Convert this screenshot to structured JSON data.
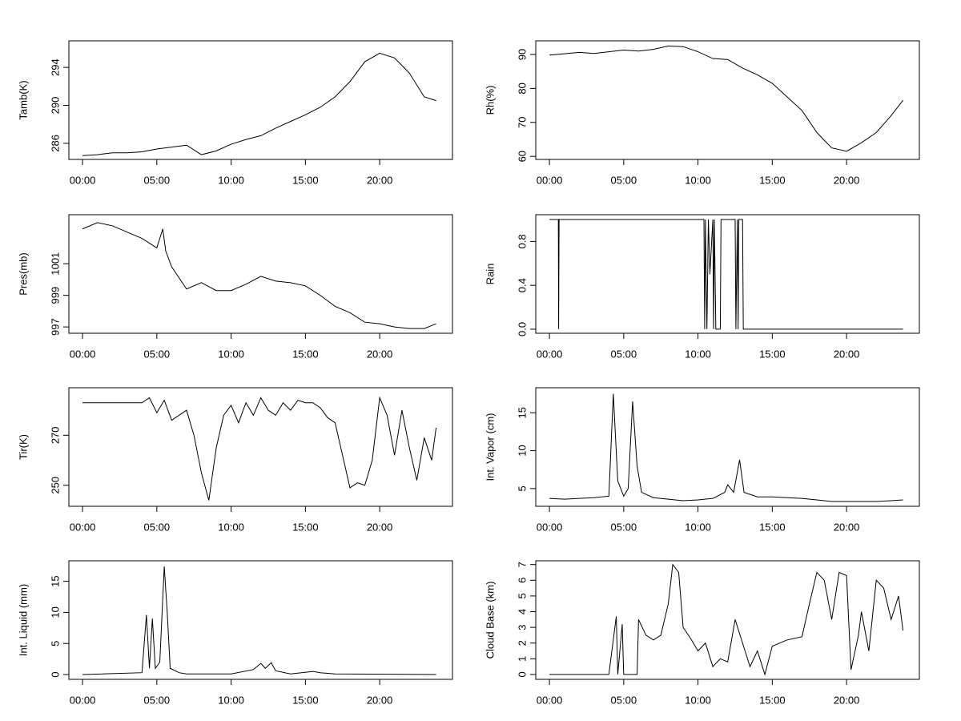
{
  "chart_data": [
    {
      "type": "line",
      "ylabel": "Tamb(K)",
      "color": "#000000",
      "x": [
        0,
        1,
        2,
        3,
        4,
        5,
        6,
        7,
        8,
        9,
        10,
        11,
        12,
        13,
        14,
        15,
        16,
        17,
        18,
        19,
        20,
        21,
        22,
        23,
        23.8
      ],
      "values": [
        284.7,
        284.8,
        285.0,
        285.0,
        285.1,
        285.4,
        285.6,
        285.8,
        284.8,
        285.2,
        285.9,
        286.4,
        286.8,
        287.6,
        288.3,
        289.0,
        289.8,
        290.9,
        292.5,
        294.6,
        295.5,
        295.0,
        293.4,
        290.9,
        290.5
      ],
      "xlim": [
        -0.92,
        24.9
      ],
      "ylim": [
        284.3,
        296.8
      ],
      "xticks": [
        {
          "value": 0,
          "label": "00:00"
        },
        {
          "value": 5,
          "label": "05:00"
        },
        {
          "value": 10,
          "label": "10:00"
        },
        {
          "value": 15,
          "label": "15:00"
        },
        {
          "value": 20,
          "label": "20:00"
        }
      ],
      "yticks": [
        286,
        290,
        294
      ]
    },
    {
      "type": "line",
      "ylabel": "Rh(%)",
      "color": "#000000",
      "x": [
        0,
        1,
        2,
        3,
        4,
        5,
        6,
        7,
        8,
        9,
        10,
        11,
        12,
        13,
        14,
        15,
        16,
        17,
        18,
        19,
        20,
        21,
        22,
        23,
        23.8
      ],
      "values": [
        89.8,
        90.2,
        90.6,
        90.3,
        90.8,
        91.3,
        91.0,
        91.5,
        92.5,
        92.3,
        90.8,
        88.8,
        88.5,
        86.0,
        84.0,
        81.5,
        77.5,
        73.5,
        67.0,
        62.5,
        61.5,
        64.0,
        67.0,
        72.0,
        76.5
      ],
      "xlim": [
        -0.92,
        24.9
      ],
      "ylim": [
        59.1,
        94.0
      ],
      "xticks": [
        {
          "value": 0,
          "label": "00:00"
        },
        {
          "value": 5,
          "label": "05:00"
        },
        {
          "value": 10,
          "label": "10:00"
        },
        {
          "value": 15,
          "label": "15:00"
        },
        {
          "value": 20,
          "label": "20:00"
        }
      ],
      "yticks": [
        60,
        70,
        80,
        90
      ]
    },
    {
      "type": "line",
      "ylabel": "Pres(mb)",
      "color": "#000000",
      "x": [
        0,
        1,
        2,
        3,
        4,
        5,
        5.4,
        5.6,
        6,
        7,
        8,
        9,
        10,
        11,
        12,
        13,
        14,
        15,
        16,
        17,
        18,
        19,
        20,
        21,
        22,
        23,
        23.8
      ],
      "values": [
        1003.2,
        1003.6,
        1003.4,
        1003.0,
        1002.6,
        1002.0,
        1003.2,
        1001.8,
        1000.8,
        999.4,
        999.8,
        999.3,
        999.3,
        999.7,
        1000.2,
        999.9,
        999.8,
        999.6,
        999.0,
        998.3,
        997.9,
        997.3,
        997.2,
        997.0,
        996.9,
        996.9,
        997.2
      ],
      "xlim": [
        -0.92,
        24.9
      ],
      "ylim": [
        996.6,
        1004.1
      ],
      "xticks": [
        {
          "value": 0,
          "label": "00:00"
        },
        {
          "value": 5,
          "label": "05:00"
        },
        {
          "value": 10,
          "label": "10:00"
        },
        {
          "value": 15,
          "label": "15:00"
        },
        {
          "value": 20,
          "label": "20:00"
        }
      ],
      "yticks": [
        997,
        999,
        1001
      ]
    },
    {
      "type": "line",
      "ylabel": "Rain",
      "color": "#000000",
      "x": [
        0,
        0.6,
        0.62,
        0.65,
        10.4,
        10.45,
        10.5,
        10.6,
        10.7,
        10.8,
        11.0,
        11.05,
        11.1,
        11.2,
        11.5,
        11.55,
        12.5,
        12.55,
        12.65,
        12.7,
        12.75,
        13.0,
        13.05,
        23.8
      ],
      "values": [
        1,
        1,
        0,
        1,
        1,
        0,
        1,
        0,
        1,
        0.5,
        1,
        0,
        1,
        0,
        0,
        1,
        1,
        0,
        1,
        0,
        1,
        1,
        0,
        0
      ],
      "xlim": [
        -0.92,
        24.9
      ],
      "ylim": [
        -0.037,
        1.044
      ],
      "xticks": [
        {
          "value": 0,
          "label": "00:00"
        },
        {
          "value": 5,
          "label": "05:00"
        },
        {
          "value": 10,
          "label": "10:00"
        },
        {
          "value": 15,
          "label": "15:00"
        },
        {
          "value": 20,
          "label": "20:00"
        }
      ],
      "yticks": [
        {
          "value": 0,
          "label": "0.0"
        },
        0.4,
        0.8
      ]
    },
    {
      "type": "line",
      "ylabel": "Tir(K)",
      "color": "#000000",
      "x": [
        0,
        4,
        4.5,
        5,
        5.5,
        6,
        6.5,
        7,
        7.5,
        8,
        8.5,
        9,
        9.5,
        10,
        10.5,
        11,
        11.5,
        12,
        12.5,
        13,
        13.5,
        14,
        14.5,
        15,
        15.5,
        16,
        16.5,
        17,
        17.5,
        18,
        18.5,
        19,
        19.5,
        20,
        20.5,
        21,
        21.5,
        22,
        22.5,
        23,
        23.5,
        23.8
      ],
      "values": [
        283,
        283,
        285,
        279,
        284,
        276,
        278,
        280,
        270,
        255,
        244,
        265,
        278,
        282,
        275,
        283,
        278,
        285,
        280,
        278,
        283,
        280,
        284,
        283,
        283,
        281,
        277,
        275,
        262,
        249,
        251,
        250,
        260,
        285,
        278,
        262,
        280,
        265,
        252,
        269,
        260,
        273
      ],
      "xlim": [
        -0.92,
        24.9
      ],
      "ylim": [
        241.6,
        289.0
      ],
      "xticks": [
        {
          "value": 0,
          "label": "00:00"
        },
        {
          "value": 5,
          "label": "05:00"
        },
        {
          "value": 10,
          "label": "10:00"
        },
        {
          "value": 15,
          "label": "15:00"
        },
        {
          "value": 20,
          "label": "20:00"
        }
      ],
      "yticks": [
        250,
        270
      ]
    },
    {
      "type": "line",
      "ylabel": "Int. Vapor (cm)",
      "color": "#000000",
      "x": [
        0,
        1,
        2,
        3,
        4,
        4.3,
        4.6,
        5.0,
        5.3,
        5.6,
        5.9,
        6.2,
        7,
        8,
        9,
        10,
        11,
        11.8,
        12,
        12.4,
        12.8,
        13.1,
        14,
        15,
        16,
        17,
        18,
        19,
        20,
        21,
        22,
        23,
        23.8
      ],
      "values": [
        3.7,
        3.6,
        3.7,
        3.8,
        4.0,
        17.5,
        6,
        4,
        5,
        16.5,
        8,
        4.5,
        3.8,
        3.6,
        3.4,
        3.5,
        3.7,
        4.5,
        5.5,
        4.5,
        8.8,
        4.5,
        3.9,
        3.9,
        3.8,
        3.7,
        3.5,
        3.3,
        3.3,
        3.3,
        3.3,
        3.4,
        3.5
      ],
      "xlim": [
        -0.92,
        24.9
      ],
      "ylim": [
        2.66,
        18.3
      ],
      "xticks": [
        {
          "value": 0,
          "label": "00:00"
        },
        {
          "value": 5,
          "label": "05:00"
        },
        {
          "value": 10,
          "label": "10:00"
        },
        {
          "value": 15,
          "label": "15:00"
        },
        {
          "value": 20,
          "label": "20:00"
        }
      ],
      "yticks": [
        5,
        10,
        15
      ]
    },
    {
      "type": "line",
      "ylabel": "Int. Liquid (mm)",
      "color": "#000000",
      "x": [
        0,
        4,
        4.3,
        4.5,
        4.7,
        4.9,
        5.2,
        5.5,
        5.7,
        5.9,
        6.5,
        7,
        10,
        11.5,
        12,
        12.3,
        12.7,
        13,
        14,
        15.5,
        16,
        17,
        23.8
      ],
      "values": [
        0,
        0.3,
        9.6,
        1,
        9,
        1,
        2,
        17.4,
        10,
        1,
        0.3,
        0.1,
        0.1,
        0.8,
        1.8,
        1,
        1.9,
        0.6,
        0.1,
        0.5,
        0.3,
        0.1,
        0
      ],
      "xlim": [
        -0.92,
        24.9
      ],
      "ylim": [
        -0.77,
        18.3
      ],
      "xticks": [
        {
          "value": 0,
          "label": "00:00"
        },
        {
          "value": 5,
          "label": "05:00"
        },
        {
          "value": 10,
          "label": "10:00"
        },
        {
          "value": 15,
          "label": "15:00"
        },
        {
          "value": 20,
          "label": "20:00"
        }
      ],
      "yticks": [
        0,
        5,
        10,
        15
      ]
    },
    {
      "type": "line",
      "ylabel": "Cloud Base (km)",
      "color": "#000000",
      "x": [
        0,
        4,
        4.5,
        4.6,
        4.9,
        5,
        5.9,
        6,
        6.5,
        7,
        7.5,
        8,
        8.3,
        8.7,
        9,
        9.5,
        10,
        10.5,
        11,
        11.5,
        12,
        12.5,
        13,
        13.5,
        14,
        14.5,
        15,
        16,
        17,
        17.5,
        18,
        18.5,
        19,
        19.5,
        20,
        20.3,
        20.8,
        21,
        21.5,
        22,
        22.5,
        23,
        23.5,
        23.8
      ],
      "values": [
        0,
        0,
        3.7,
        0,
        3.2,
        0,
        0,
        3.5,
        2.5,
        2.2,
        2.5,
        4.5,
        7,
        6.5,
        3,
        2.3,
        1.5,
        2,
        0.5,
        1,
        0.8,
        3.5,
        2,
        0.5,
        1.5,
        0,
        1.8,
        2.2,
        2.4,
        4.5,
        6.5,
        6.0,
        3.5,
        6.5,
        6.3,
        0.3,
        2.5,
        4,
        1.5,
        6,
        5.5,
        3.5,
        5,
        2.8
      ],
      "xlim": [
        -0.92,
        24.9
      ],
      "ylim": [
        -0.31,
        7.24
      ],
      "xticks": [
        {
          "value": 0,
          "label": "00:00"
        },
        {
          "value": 5,
          "label": "05:00"
        },
        {
          "value": 10,
          "label": "10:00"
        },
        {
          "value": 15,
          "label": "15:00"
        },
        {
          "value": 20,
          "label": "20:00"
        }
      ],
      "yticks": [
        0,
        1,
        2,
        3,
        4,
        5,
        6,
        7
      ]
    }
  ]
}
